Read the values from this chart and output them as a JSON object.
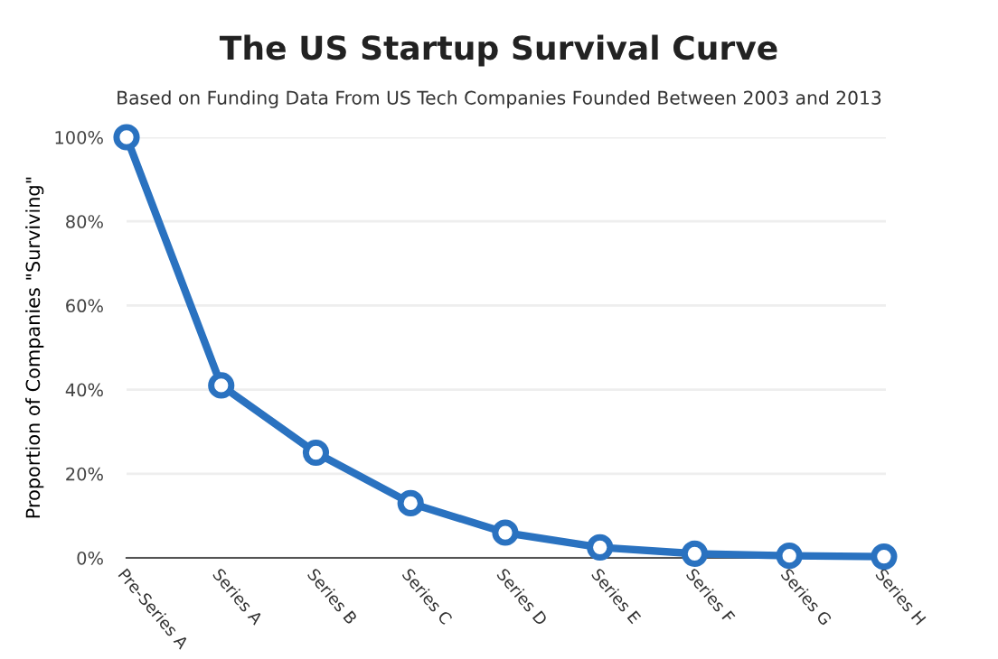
{
  "chart_data": {
    "type": "line",
    "title": "The US Startup Survival Curve",
    "subtitle": "Based on Funding Data From US Tech Companies Founded Between 2003 and 2013",
    "ylabel": "Proportion of Companies \"Surviving\"",
    "categories": [
      "Pre-Series A",
      "Series A",
      "Series B",
      "Series C",
      "Series D",
      "Series E",
      "Series F",
      "Series G",
      "Series H"
    ],
    "series": [
      {
        "color": "#2a72c0",
        "values": [
          100,
          41,
          25,
          13,
          6,
          2.5,
          1,
          0.5,
          0.3
        ]
      }
    ],
    "ylim": [
      0,
      100
    ],
    "yticks": [
      {
        "value": 0,
        "label": "0%"
      },
      {
        "value": 20,
        "label": "20%"
      },
      {
        "value": 40,
        "label": "40%"
      },
      {
        "value": 60,
        "label": "60%"
      },
      {
        "value": 80,
        "label": "80%"
      },
      {
        "value": 100,
        "label": "100%"
      }
    ],
    "grid": "y",
    "marker": "circle",
    "line_style": "solid"
  }
}
